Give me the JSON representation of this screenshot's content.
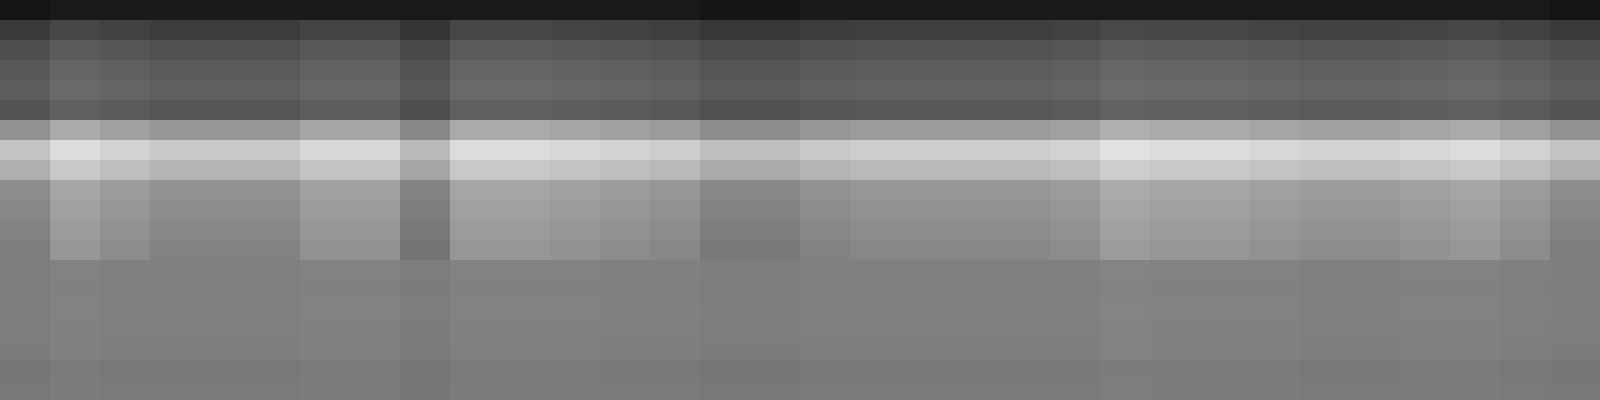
{
  "chart_data": {
    "type": "heatmap",
    "tick_labels": false,
    "color_range": [
      0,
      255
    ],
    "cells": [
      [
        20,
        25,
        25,
        25,
        25,
        25,
        25,
        25,
        25,
        25,
        25,
        25,
        25,
        25,
        20,
        20,
        25,
        25,
        25,
        25,
        25,
        25,
        25,
        25,
        25,
        25,
        25,
        25,
        25,
        25,
        25,
        20
      ],
      [
        58,
        70,
        65,
        60,
        60,
        60,
        68,
        68,
        52,
        70,
        70,
        68,
        65,
        62,
        55,
        55,
        60,
        62,
        62,
        62,
        62,
        65,
        72,
        70,
        70,
        68,
        65,
        65,
        68,
        70,
        65,
        58
      ],
      [
        78,
        90,
        85,
        80,
        80,
        80,
        88,
        88,
        72,
        90,
        90,
        88,
        85,
        82,
        75,
        75,
        80,
        82,
        82,
        82,
        82,
        85,
        92,
        90,
        90,
        88,
        85,
        85,
        88,
        90,
        85,
        78
      ],
      [
        88,
        100,
        95,
        90,
        90,
        90,
        98,
        98,
        82,
        100,
        100,
        98,
        95,
        92,
        85,
        85,
        90,
        92,
        92,
        92,
        92,
        95,
        102,
        100,
        100,
        98,
        95,
        95,
        98,
        100,
        95,
        88
      ],
      [
        93,
        105,
        100,
        95,
        95,
        95,
        103,
        103,
        87,
        105,
        105,
        103,
        100,
        97,
        90,
        90,
        95,
        97,
        97,
        97,
        97,
        100,
        107,
        105,
        105,
        103,
        100,
        100,
        103,
        105,
        100,
        93
      ],
      [
        83,
        95,
        90,
        85,
        85,
        85,
        93,
        93,
        77,
        95,
        95,
        93,
        90,
        87,
        80,
        80,
        85,
        87,
        87,
        87,
        87,
        90,
        97,
        95,
        95,
        93,
        90,
        90,
        93,
        95,
        90,
        83
      ],
      [
        145,
        170,
        160,
        150,
        150,
        150,
        165,
        165,
        135,
        170,
        170,
        165,
        160,
        155,
        140,
        140,
        150,
        155,
        155,
        155,
        155,
        160,
        175,
        170,
        170,
        165,
        160,
        160,
        165,
        170,
        160,
        145
      ],
      [
        195,
        220,
        210,
        200,
        200,
        200,
        215,
        215,
        185,
        220,
        220,
        215,
        210,
        205,
        190,
        190,
        200,
        205,
        205,
        205,
        205,
        210,
        225,
        220,
        220,
        215,
        210,
        210,
        215,
        220,
        210,
        195
      ],
      [
        175,
        200,
        190,
        180,
        180,
        180,
        195,
        195,
        165,
        200,
        200,
        195,
        190,
        185,
        170,
        170,
        180,
        185,
        185,
        185,
        185,
        190,
        205,
        200,
        200,
        195,
        190,
        190,
        195,
        200,
        190,
        175
      ],
      [
        140,
        165,
        155,
        145,
        145,
        145,
        160,
        160,
        130,
        165,
        165,
        160,
        155,
        150,
        135,
        135,
        145,
        150,
        150,
        150,
        150,
        155,
        170,
        165,
        165,
        160,
        155,
        155,
        160,
        165,
        155,
        140
      ],
      [
        135,
        160,
        150,
        140,
        140,
        140,
        155,
        155,
        125,
        160,
        160,
        155,
        150,
        145,
        130,
        130,
        140,
        145,
        145,
        145,
        145,
        150,
        165,
        160,
        160,
        155,
        150,
        150,
        155,
        160,
        150,
        135
      ],
      [
        130,
        155,
        145,
        135,
        135,
        135,
        150,
        150,
        120,
        155,
        155,
        150,
        145,
        140,
        125,
        125,
        135,
        140,
        140,
        140,
        140,
        145,
        160,
        155,
        155,
        150,
        145,
        145,
        150,
        155,
        145,
        130
      ],
      [
        125,
        150,
        140,
        130,
        130,
        130,
        145,
        145,
        115,
        150,
        150,
        145,
        140,
        135,
        120,
        120,
        130,
        135,
        135,
        135,
        135,
        140,
        155,
        150,
        150,
        145,
        140,
        140,
        145,
        150,
        140,
        125
      ],
      [
        126,
        130,
        128,
        128,
        128,
        128,
        130,
        130,
        125,
        130,
        130,
        130,
        128,
        128,
        126,
        126,
        128,
        128,
        128,
        128,
        128,
        128,
        132,
        130,
        130,
        130,
        128,
        128,
        130,
        130,
        128,
        126
      ],
      [
        125,
        129,
        127,
        127,
        127,
        127,
        129,
        129,
        124,
        129,
        129,
        129,
        127,
        127,
        125,
        125,
        127,
        127,
        127,
        127,
        127,
        127,
        131,
        129,
        129,
        129,
        127,
        127,
        129,
        129,
        127,
        125
      ],
      [
        126,
        130,
        128,
        128,
        128,
        128,
        130,
        130,
        125,
        130,
        130,
        130,
        128,
        128,
        126,
        126,
        128,
        128,
        128,
        128,
        128,
        128,
        132,
        130,
        130,
        130,
        128,
        128,
        130,
        130,
        128,
        126
      ],
      [
        125,
        129,
        127,
        127,
        127,
        127,
        129,
        129,
        124,
        129,
        129,
        129,
        127,
        127,
        125,
        125,
        127,
        127,
        127,
        127,
        127,
        127,
        131,
        129,
        129,
        129,
        127,
        127,
        129,
        129,
        127,
        125
      ],
      [
        124,
        128,
        126,
        126,
        126,
        126,
        128,
        128,
        123,
        128,
        128,
        128,
        126,
        126,
        124,
        124,
        126,
        126,
        126,
        126,
        126,
        126,
        130,
        128,
        128,
        128,
        126,
        126,
        128,
        128,
        126,
        124
      ],
      [
        118,
        122,
        120,
        120,
        120,
        120,
        122,
        122,
        117,
        122,
        122,
        122,
        120,
        120,
        118,
        118,
        120,
        120,
        120,
        120,
        120,
        120,
        124,
        122,
        122,
        122,
        120,
        120,
        122,
        122,
        120,
        118
      ],
      [
        120,
        124,
        122,
        122,
        122,
        122,
        124,
        124,
        119,
        124,
        124,
        124,
        122,
        122,
        120,
        120,
        122,
        122,
        122,
        122,
        122,
        122,
        126,
        124,
        124,
        124,
        122,
        122,
        124,
        124,
        122,
        120
      ]
    ]
  }
}
